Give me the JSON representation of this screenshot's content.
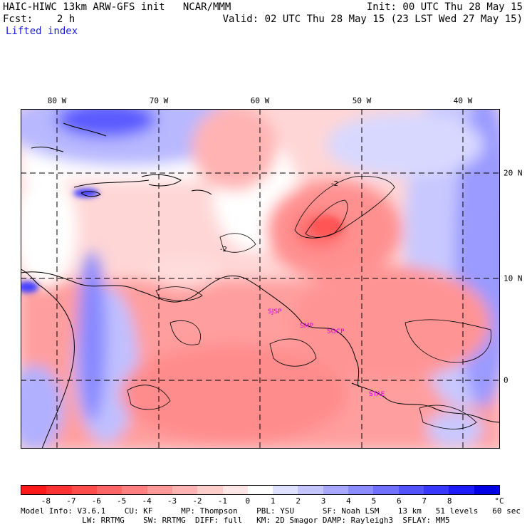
{
  "header": {
    "model_line": "HAIC-HIWC 13km ARW-GFS init   NCAR/MMM",
    "init_line": "Init: 00 UTC Thu 28 May 15",
    "fcst_line": "Fcst:    2 h",
    "valid_line": "Valid: 02 UTC Thu 28 May 15 (23 LST Wed 27 May 15)",
    "field_name": "Lifted index"
  },
  "axes": {
    "lon_labels": [
      "80 W",
      "70 W",
      "60 W",
      "50 W",
      "40 W"
    ],
    "lat_labels": [
      "20 N",
      "10 N",
      "0"
    ]
  },
  "map_labels": {
    "cities": [
      "SJSP",
      "SMP",
      "SOCP",
      "STAE"
    ],
    "contour_values": [
      "-2",
      "-2"
    ]
  },
  "colorbar": {
    "labels": [
      "-8",
      "-7",
      "-6",
      "-5",
      "-4",
      "-3",
      "-2",
      "-1",
      "0",
      "1",
      "2",
      "3",
      "4",
      "5",
      "6",
      "7",
      "8"
    ],
    "unit": "°C",
    "colors": [
      "#ff1a1a",
      "#ff3333",
      "#ff4d4d",
      "#ff6666",
      "#ff8080",
      "#ff9999",
      "#ffb3b3",
      "#ffcccc",
      "#ffe6e6",
      "#ffffff",
      "#e0e0ff",
      "#c4c4ff",
      "#a8a8ff",
      "#8c8cff",
      "#7070ff",
      "#5454ff",
      "#3838ff",
      "#1c1cff",
      "#0000e6"
    ]
  },
  "footer": {
    "line1": "Model Info: V3.6.1    CU: KF      MP: Thompson    PBL: YSU      SF: Noah LSM    13 km   51 levels   60 sec",
    "line2": "             LW: RRTMG    SW: RRTMG  DIFF: full   KM: 2D Smagor DAMP: Rayleigh3  SFLAY: MM5"
  }
}
